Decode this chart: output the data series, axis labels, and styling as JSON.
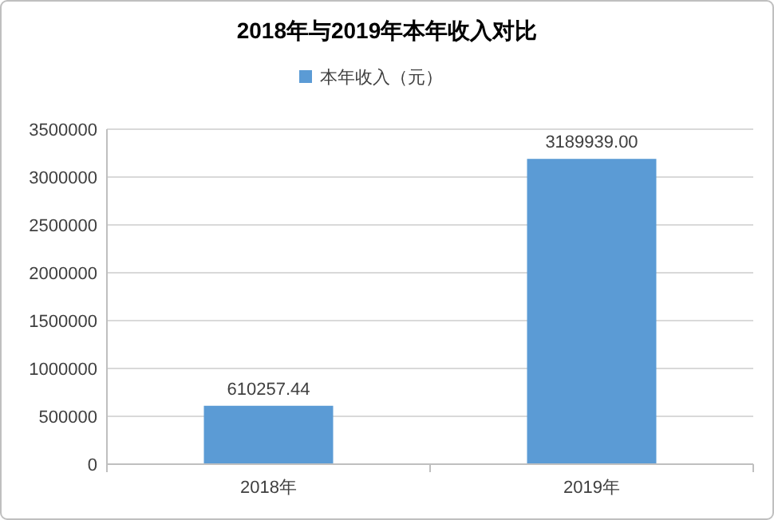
{
  "chart_data": {
    "type": "bar",
    "title": "2018年与2019年本年收入对比",
    "categories": [
      "2018年",
      "2019年"
    ],
    "series": [
      {
        "name": "本年收入（元）",
        "color": "#5b9bd5",
        "values": [
          610257.44,
          3189939.0
        ],
        "value_labels": [
          "610257.44",
          "3189939.00"
        ]
      }
    ],
    "ylim": [
      0,
      3500000
    ],
    "yticks": [
      0,
      500000,
      1000000,
      1500000,
      2000000,
      2500000,
      3000000,
      3500000
    ],
    "grid": "y",
    "legend": "top"
  }
}
